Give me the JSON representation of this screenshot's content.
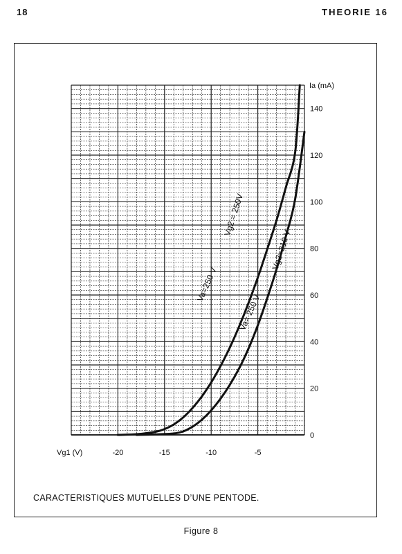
{
  "header": {
    "page_number": "18",
    "running_head": "THEORIE 16"
  },
  "caption": "CARACTERISTIQUES MUTUELLES D’UNE PENTODE.",
  "figure_label": "Figure 8",
  "chart_data": {
    "type": "line",
    "title": "",
    "xlabel": "Vg1 (V)",
    "ylabel": "Ia (mA)",
    "xlim": [
      -25,
      0
    ],
    "ylim": [
      0,
      150
    ],
    "grid": true,
    "x_ticks": [
      -20,
      -15,
      -10,
      -5
    ],
    "x_tick_labels": [
      "-20",
      "-15",
      "-10",
      "-5"
    ],
    "y_ticks": [
      0,
      20,
      40,
      60,
      80,
      100,
      120,
      140
    ],
    "y_tick_labels": [
      "0",
      "20",
      "40",
      "60",
      "80",
      "100",
      "120",
      "140"
    ],
    "series": [
      {
        "annotations": [
          "Vg2 = 250V",
          "Va=250 V"
        ],
        "x": [
          -20,
          -18,
          -16,
          -15,
          -14,
          -13,
          -12,
          -11,
          -10,
          -9,
          -8,
          -7,
          -6,
          -5,
          -4,
          -3,
          -2,
          -1,
          -0.5
        ],
        "y": [
          0,
          0.3,
          1.3,
          2.5,
          4.5,
          7.5,
          11.5,
          16.5,
          22.5,
          29.5,
          37.5,
          46.5,
          56.5,
          67.5,
          79.5,
          92,
          106,
          121,
          150
        ]
      },
      {
        "annotations": [
          "Vg2=210 V",
          "Va= 250 V"
        ],
        "x": [
          -18,
          -16,
          -14,
          -13,
          -12,
          -11,
          -10,
          -9,
          -8,
          -7,
          -6,
          -5,
          -4,
          -3,
          -2,
          -1,
          0
        ],
        "y": [
          0,
          0.2,
          0.6,
          1.5,
          3.5,
          6.5,
          10.5,
          15.5,
          21.5,
          28.5,
          37,
          47,
          58.5,
          71,
          85,
          101,
          130
        ]
      }
    ]
  }
}
